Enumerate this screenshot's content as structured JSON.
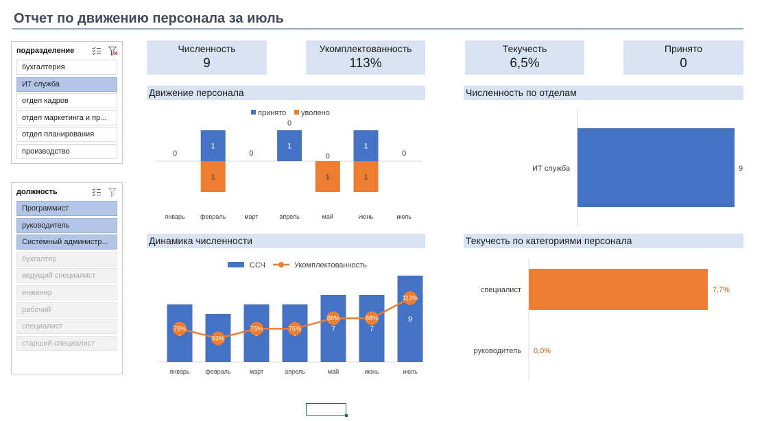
{
  "title": "Отчет по движению персонала за июль",
  "slicers": {
    "department": {
      "title": "подразделение",
      "items": [
        {
          "label": "бухгалтерия",
          "state": "normal"
        },
        {
          "label": "ИТ служба",
          "state": "selected"
        },
        {
          "label": "отдел кадров",
          "state": "normal"
        },
        {
          "label": "отдел маркетинга и пр...",
          "state": "normal"
        },
        {
          "label": "отдел планирования",
          "state": "normal"
        },
        {
          "label": "производство",
          "state": "normal"
        }
      ]
    },
    "position": {
      "title": "должность",
      "items": [
        {
          "label": "Программист",
          "state": "selected"
        },
        {
          "label": "руководитель",
          "state": "selected"
        },
        {
          "label": "Системный администр...",
          "state": "selected"
        },
        {
          "label": "бухгалтер",
          "state": "dim"
        },
        {
          "label": "ведущий специалист",
          "state": "dim"
        },
        {
          "label": "инженер",
          "state": "dim"
        },
        {
          "label": "рабочий",
          "state": "dim"
        },
        {
          "label": "специалист",
          "state": "dim"
        },
        {
          "label": "старший специалист",
          "state": "dim"
        }
      ]
    }
  },
  "kpis": [
    {
      "label": "Численность",
      "value": "9"
    },
    {
      "label": "Укомплектованность",
      "value": "113%"
    },
    {
      "label": "Текучесть",
      "value": "6,5%"
    },
    {
      "label": "Принято",
      "value": "0"
    }
  ],
  "sections": {
    "movement": "Движение персонала",
    "headcount_by_dept": "Численность по отделам",
    "dynamics": "Динамика численности",
    "turnover_by_category": "Текучесть по категориями персонала"
  },
  "colors": {
    "blue": "#4472c4",
    "orange": "#ed7d31",
    "header_bg": "#dae3f3",
    "selected": "#b4c6e7"
  },
  "icons": {
    "multiselect": "multi-select-icon",
    "clear_filter": "clear-filter-icon"
  },
  "chart_data": [
    {
      "type": "bar",
      "title": "Движение персонала",
      "categories": [
        "январь",
        "февраль",
        "март",
        "апрель",
        "май",
        "июнь",
        "июль"
      ],
      "series": [
        {
          "name": "принято",
          "values": [
            0,
            1,
            0,
            1,
            0,
            1,
            0
          ]
        },
        {
          "name": "уволено",
          "values": [
            0,
            1,
            0,
            0,
            1,
            1,
            0
          ]
        }
      ],
      "data_labels": [
        {
          "cat": 0,
          "series": "total",
          "text": "0"
        },
        {
          "cat": 1,
          "series": "принято",
          "text": "1"
        },
        {
          "cat": 1,
          "series": "уволено",
          "text": "1"
        },
        {
          "cat": 2,
          "series": "total",
          "text": "0"
        },
        {
          "cat": 3,
          "series": "принято",
          "text": "1"
        },
        {
          "cat": 3,
          "series": "уволено",
          "text": "0"
        },
        {
          "cat": 4,
          "series": "принято",
          "text": "0"
        },
        {
          "cat": 4,
          "series": "уволено",
          "text": "1"
        },
        {
          "cat": 5,
          "series": "принято",
          "text": "1"
        },
        {
          "cat": 5,
          "series": "уволено",
          "text": "1"
        },
        {
          "cat": 6,
          "series": "total",
          "text": "0"
        }
      ],
      "legend": "top"
    },
    {
      "type": "bar",
      "orientation": "horizontal",
      "title": "Численность по отделам",
      "categories": [
        "ИТ служба"
      ],
      "values": [
        9
      ]
    },
    {
      "type": "bar",
      "title": "Динамика численности",
      "categories": [
        "январь",
        "февраль",
        "март",
        "апрель",
        "май",
        "июнь",
        "июль"
      ],
      "series": [
        {
          "name": "ССЧ",
          "type": "bar",
          "values": [
            6,
            5,
            6,
            6,
            7,
            7,
            9
          ]
        },
        {
          "name": "Укомплектованность",
          "type": "line",
          "values": [
            75,
            63,
            75,
            75,
            88,
            88,
            113
          ],
          "labels": [
            "75%",
            "63%",
            "75%",
            "75%",
            "88%",
            "88%",
            "113%"
          ]
        }
      ],
      "legend": "top"
    },
    {
      "type": "bar",
      "orientation": "horizontal",
      "title": "Текучесть по категориями персонала",
      "categories": [
        "специалист",
        "руководитель"
      ],
      "values": [
        7.7,
        0.0
      ],
      "labels": [
        "7,7%",
        "0,0%"
      ]
    }
  ]
}
